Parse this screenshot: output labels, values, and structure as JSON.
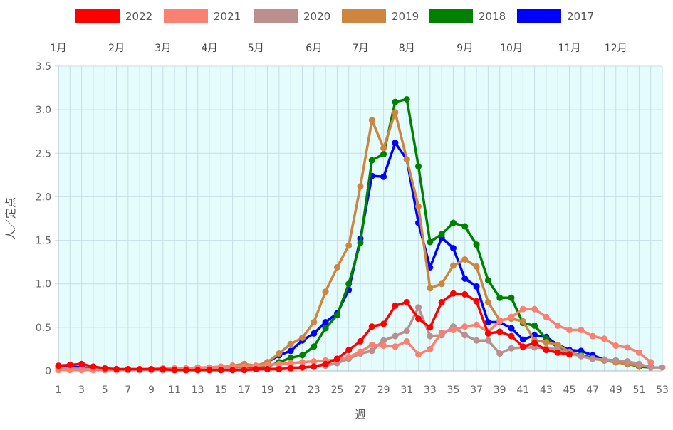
{
  "chart_data": {
    "type": "line",
    "title": "",
    "xlabel": "週",
    "ylabel": "人／定点",
    "ylim": [
      0,
      3.5
    ],
    "yticks": [
      "0",
      "0.5",
      "1.0",
      "1.5",
      "2.0",
      "2.5",
      "3.0",
      "3.5"
    ],
    "xlim": [
      1,
      53
    ],
    "xticks": [
      1,
      3,
      5,
      7,
      9,
      11,
      13,
      15,
      17,
      19,
      21,
      23,
      25,
      27,
      29,
      31,
      33,
      35,
      37,
      39,
      41,
      43,
      45,
      47,
      49,
      51,
      53
    ],
    "month_labels": [
      {
        "label": "1月",
        "week": 1
      },
      {
        "label": "2月",
        "week": 6
      },
      {
        "label": "3月",
        "week": 10
      },
      {
        "label": "4月",
        "week": 14
      },
      {
        "label": "5月",
        "week": 18
      },
      {
        "label": "6月",
        "week": 23
      },
      {
        "label": "7月",
        "week": 27
      },
      {
        "label": "8月",
        "week": 31
      },
      {
        "label": "9月",
        "week": 36
      },
      {
        "label": "10月",
        "week": 40
      },
      {
        "label": "11月",
        "week": 45
      },
      {
        "label": "12月",
        "week": 49
      }
    ],
    "grid": true,
    "background": "#e5fcfd",
    "legend_position": "top",
    "series": [
      {
        "name": "2017",
        "color": "#0000ff",
        "values": [
          0.05,
          0.05,
          0.04,
          0.03,
          0.02,
          0.02,
          0.01,
          0.01,
          0.01,
          0.01,
          0.01,
          0.01,
          0.01,
          0.01,
          0.02,
          0.02,
          0.03,
          0.05,
          0.1,
          0.18,
          0.23,
          0.35,
          0.43,
          0.56,
          0.66,
          0.93,
          1.52,
          2.24,
          2.23,
          2.62,
          2.43,
          1.7,
          1.19,
          1.53,
          1.41,
          1.06,
          0.97,
          0.56,
          0.56,
          0.49,
          0.36,
          0.41,
          0.39,
          0.3,
          0.24,
          0.23,
          0.18,
          0.13,
          0.12,
          0.1,
          0.07,
          0.05
        ]
      },
      {
        "name": "2018",
        "color": "#008000",
        "values": [
          0.04,
          0.03,
          0.03,
          0.02,
          0.02,
          0.01,
          0.01,
          0.01,
          0.01,
          0.01,
          0.01,
          0.01,
          0.01,
          0.01,
          0.01,
          0.01,
          0.02,
          0.03,
          0.05,
          0.1,
          0.15,
          0.18,
          0.28,
          0.49,
          0.64,
          1.0,
          1.47,
          2.42,
          2.49,
          3.09,
          3.12,
          2.35,
          1.48,
          1.57,
          1.7,
          1.66,
          1.45,
          1.04,
          0.84,
          0.84,
          0.55,
          0.52,
          0.37,
          0.27,
          0.21,
          0.18,
          0.15,
          0.12,
          0.1,
          0.08,
          0.05,
          0.04
        ]
      },
      {
        "name": "2019",
        "color": "#cd853f",
        "values": [
          0.03,
          0.02,
          0.02,
          0.02,
          0.01,
          0.01,
          0.01,
          0.01,
          0.01,
          0.02,
          0.02,
          0.02,
          0.02,
          0.03,
          0.04,
          0.06,
          0.08,
          0.06,
          0.1,
          0.2,
          0.31,
          0.38,
          0.56,
          0.91,
          1.19,
          1.44,
          2.12,
          2.88,
          2.56,
          2.97,
          2.43,
          1.89,
          0.95,
          1.0,
          1.21,
          1.28,
          1.2,
          0.79,
          0.58,
          0.6,
          0.57,
          0.35,
          0.33,
          0.3,
          0.22,
          0.17,
          0.14,
          0.12,
          0.1,
          0.08,
          0.06,
          0.05
        ]
      },
      {
        "name": "2020",
        "color": "#bc8f8f",
        "values": [
          0.03,
          0.03,
          0.02,
          0.02,
          0.02,
          0.02,
          0.01,
          0.01,
          0.01,
          0.01,
          0.01,
          0.01,
          0.01,
          0.01,
          0.02,
          0.02,
          0.02,
          0.02,
          0.02,
          0.03,
          0.04,
          0.04,
          0.05,
          0.06,
          0.09,
          0.14,
          0.2,
          0.23,
          0.35,
          0.4,
          0.46,
          0.73,
          0.4,
          0.41,
          0.51,
          0.41,
          0.35,
          0.35,
          0.2,
          0.26,
          0.27,
          0.27,
          0.26,
          0.25,
          0.2,
          0.17,
          0.14,
          0.13,
          0.12,
          0.11,
          0.08,
          0.04,
          0.04
        ]
      },
      {
        "name": "2021",
        "color": "#fa8072",
        "values": [
          0.01,
          0.01,
          0.01,
          0.01,
          0.01,
          0.01,
          0.02,
          0.02,
          0.02,
          0.03,
          0.03,
          0.03,
          0.04,
          0.04,
          0.05,
          0.05,
          0.05,
          0.06,
          0.07,
          0.08,
          0.09,
          0.1,
          0.11,
          0.12,
          0.13,
          0.16,
          0.22,
          0.3,
          0.29,
          0.28,
          0.34,
          0.19,
          0.25,
          0.44,
          0.47,
          0.51,
          0.53,
          0.45,
          0.57,
          0.62,
          0.71,
          0.71,
          0.62,
          0.52,
          0.47,
          0.47,
          0.4,
          0.37,
          0.29,
          0.27,
          0.21,
          0.1
        ]
      },
      {
        "name": "2022",
        "color": "#ff0000",
        "values": [
          0.06,
          0.07,
          0.08,
          0.05,
          0.03,
          0.02,
          0.02,
          0.02,
          0.02,
          0.02,
          0.01,
          0.01,
          0.01,
          0.01,
          0.01,
          0.01,
          0.01,
          0.02,
          0.02,
          0.02,
          0.03,
          0.04,
          0.05,
          0.08,
          0.14,
          0.24,
          0.34,
          0.51,
          0.54,
          0.75,
          0.79,
          0.6,
          0.5,
          0.79,
          0.89,
          0.88,
          0.8,
          0.43,
          0.45,
          0.4,
          0.28,
          0.32,
          0.24,
          0.21,
          0.19
        ]
      }
    ]
  }
}
